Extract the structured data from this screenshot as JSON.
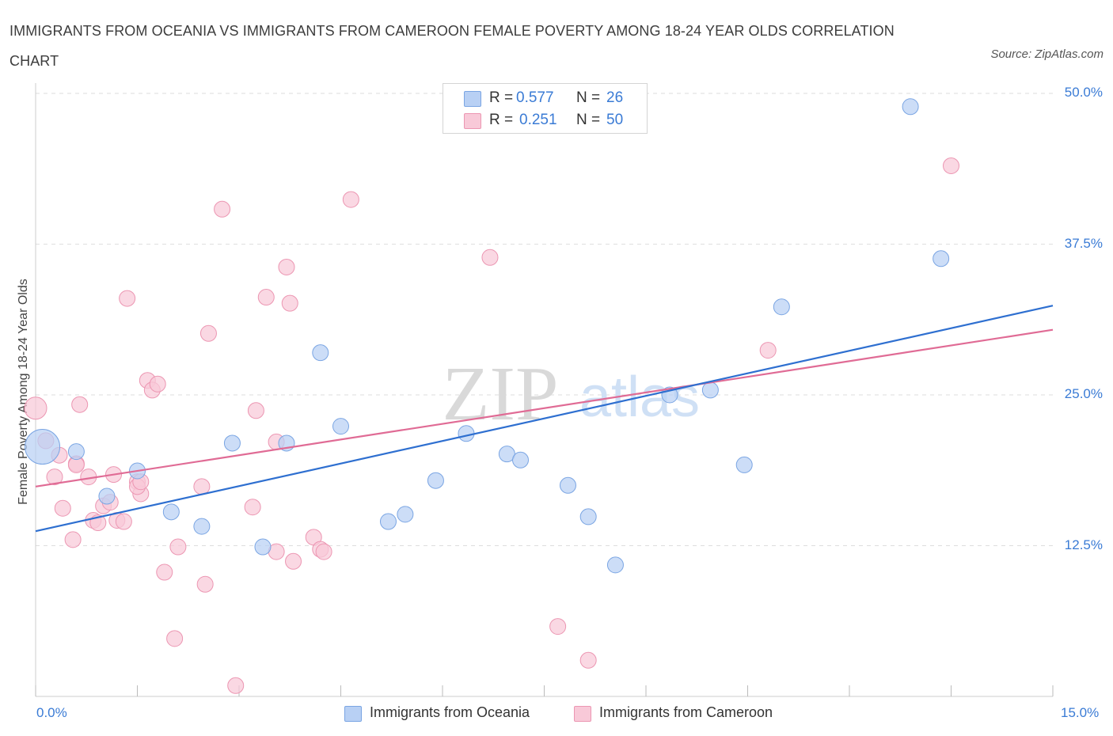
{
  "title": "IMMIGRANTS FROM OCEANIA VS IMMIGRANTS FROM CAMEROON FEMALE POVERTY AMONG 18-24 YEAR OLDS CORRELATION CHART",
  "source": "Source: ZipAtlas.com",
  "watermark": {
    "zip": "ZIP",
    "atlas": "atlas"
  },
  "legend": {
    "rows": [
      {
        "r_label": "R =",
        "r_value": "0.577",
        "n_label": "N =",
        "n_value": "26"
      },
      {
        "r_label": "R =",
        "r_value": "0.251",
        "n_label": "N =",
        "n_value": "50"
      }
    ]
  },
  "bottom_legend": [
    "Immigrants from Oceania",
    "Immigrants from Cameroon"
  ],
  "colors": {
    "oceania_fill": "#b8d0f4",
    "oceania_stroke": "#7aa5e3",
    "oceania_line": "#2e6fd0",
    "cameroon_fill": "#f8c9d8",
    "cameroon_stroke": "#ec96b2",
    "cameroon_line": "#e06b95",
    "axis_label": "#3a7bd5",
    "grid": "#dedede"
  },
  "chart_data": {
    "type": "scatter",
    "title": "IMMIGRANTS FROM OCEANIA VS IMMIGRANTS FROM CAMEROON FEMALE POVERTY AMONG 18-24 YEAR OLDS CORRELATION CHART",
    "xlabel": "",
    "ylabel": "Female Poverty Among 18-24 Year Olds",
    "xlim": [
      0,
      15
    ],
    "ylim": [
      0,
      50
    ],
    "x_tick_labels": [
      "0.0%",
      "15.0%"
    ],
    "y_ticks": [
      12.5,
      25.0,
      37.5,
      50.0
    ],
    "y_tick_labels": [
      "12.5%",
      "25.0%",
      "37.5%",
      "50.0%"
    ],
    "grid": true,
    "legend_position": "top-center",
    "series": [
      {
        "name": "Immigrants from Oceania",
        "R": 0.577,
        "N": 26,
        "trend": {
          "x": [
            0,
            15
          ],
          "y": [
            13.7,
            32.4
          ]
        },
        "points": [
          [
            0.1,
            20.7,
            22
          ],
          [
            0.6,
            20.3,
            10
          ],
          [
            1.05,
            16.6,
            10
          ],
          [
            1.5,
            18.7,
            10
          ],
          [
            2.0,
            15.3,
            10
          ],
          [
            2.45,
            14.1,
            10
          ],
          [
            2.9,
            21.0,
            10
          ],
          [
            3.35,
            12.4,
            10
          ],
          [
            3.7,
            21.0,
            10
          ],
          [
            4.2,
            28.5,
            10
          ],
          [
            4.5,
            22.4,
            10
          ],
          [
            5.2,
            14.5,
            10
          ],
          [
            5.45,
            15.1,
            10
          ],
          [
            5.9,
            17.9,
            10
          ],
          [
            6.35,
            21.8,
            10
          ],
          [
            6.95,
            20.1,
            10
          ],
          [
            7.15,
            19.6,
            10
          ],
          [
            7.85,
            17.5,
            10
          ],
          [
            8.15,
            14.9,
            10
          ],
          [
            8.55,
            10.9,
            10
          ],
          [
            9.35,
            25.0,
            10
          ],
          [
            9.95,
            25.4,
            10
          ],
          [
            10.45,
            19.2,
            10
          ],
          [
            11.0,
            32.3,
            10
          ],
          [
            12.9,
            48.9,
            10
          ],
          [
            13.35,
            36.3,
            10
          ]
        ]
      },
      {
        "name": "Immigrants from Cameroon",
        "R": 0.251,
        "N": 50,
        "trend": {
          "x": [
            0,
            15
          ],
          "y": [
            17.4,
            30.4
          ]
        },
        "points": [
          [
            0.0,
            23.9,
            14
          ],
          [
            0.15,
            21.2,
            10
          ],
          [
            0.28,
            18.2,
            10
          ],
          [
            0.35,
            20.0,
            10
          ],
          [
            0.4,
            15.6,
            10
          ],
          [
            0.55,
            13.0,
            10
          ],
          [
            0.6,
            19.3,
            10
          ],
          [
            0.65,
            24.2,
            10
          ],
          [
            0.78,
            18.2,
            10
          ],
          [
            0.85,
            14.6,
            10
          ],
          [
            0.92,
            14.4,
            10
          ],
          [
            1.0,
            15.8,
            10
          ],
          [
            1.1,
            16.1,
            10
          ],
          [
            1.15,
            18.4,
            10
          ],
          [
            1.2,
            14.6,
            10
          ],
          [
            1.3,
            14.5,
            10
          ],
          [
            1.35,
            33.0,
            10
          ],
          [
            1.5,
            17.8,
            10
          ],
          [
            1.55,
            16.8,
            10
          ],
          [
            1.65,
            26.2,
            10
          ],
          [
            1.72,
            25.4,
            10
          ],
          [
            1.8,
            25.9,
            10
          ],
          [
            1.9,
            10.3,
            10
          ],
          [
            2.05,
            4.8,
            10
          ],
          [
            2.1,
            12.4,
            10
          ],
          [
            2.45,
            17.4,
            10
          ],
          [
            2.5,
            9.3,
            10
          ],
          [
            2.55,
            30.1,
            10
          ],
          [
            2.75,
            40.4,
            10
          ],
          [
            2.95,
            0.9,
            10
          ],
          [
            3.2,
            15.7,
            10
          ],
          [
            3.25,
            23.7,
            10
          ],
          [
            3.4,
            33.1,
            10
          ],
          [
            3.55,
            12.0,
            10
          ],
          [
            3.7,
            35.6,
            10
          ],
          [
            3.75,
            32.6,
            10
          ],
          [
            3.8,
            11.2,
            10
          ],
          [
            4.1,
            13.2,
            10
          ],
          [
            4.2,
            12.2,
            10
          ],
          [
            4.25,
            12.0,
            10
          ],
          [
            4.65,
            41.2,
            10
          ],
          [
            6.7,
            36.4,
            10
          ],
          [
            7.7,
            5.8,
            10
          ],
          [
            8.15,
            3.0,
            10
          ],
          [
            10.8,
            28.7,
            10
          ],
          [
            13.5,
            44.0,
            10
          ],
          [
            1.5,
            17.4,
            10
          ],
          [
            3.55,
            21.1,
            10
          ],
          [
            0.6,
            19.2,
            10
          ],
          [
            1.55,
            17.8,
            10
          ]
        ]
      }
    ]
  }
}
